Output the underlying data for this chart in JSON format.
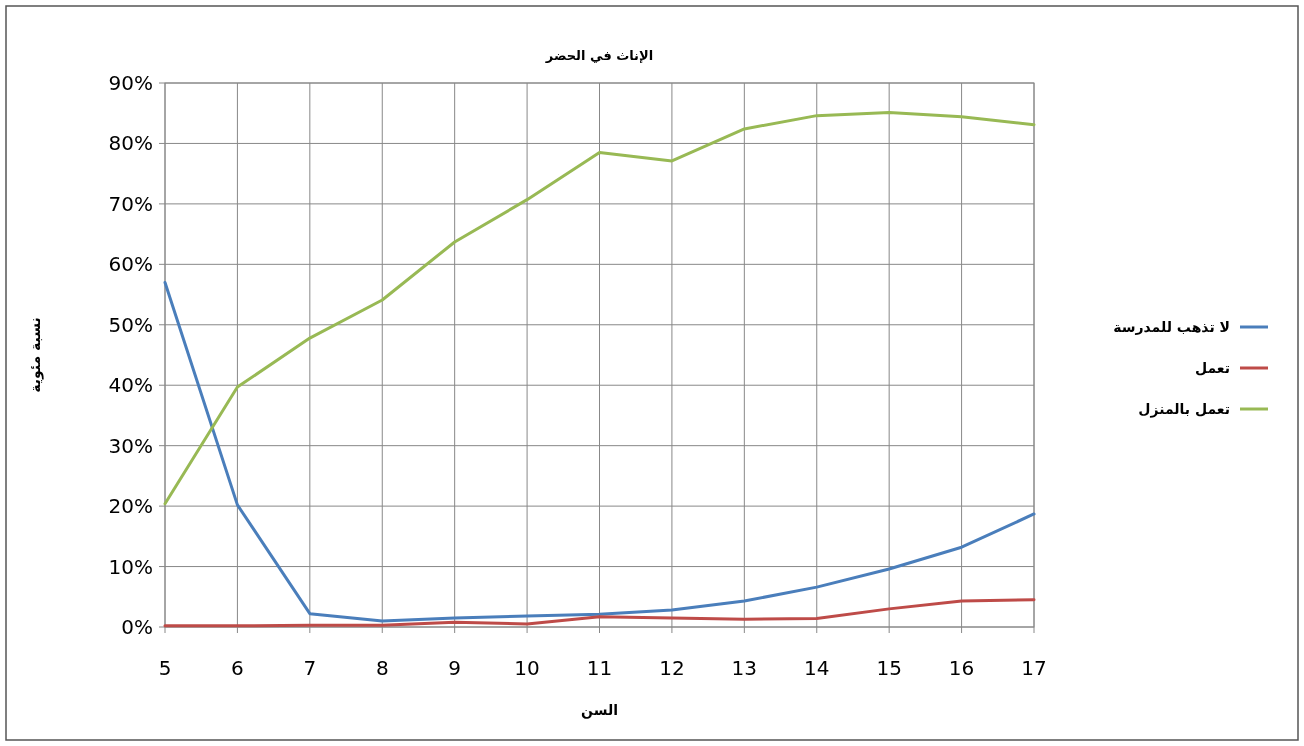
{
  "chart_data": {
    "type": "line",
    "title": "الإناث في الحضر",
    "xlabel": "السن",
    "ylabel": "نسبة مئوية",
    "x": [
      5,
      6,
      7,
      8,
      9,
      10,
      11,
      12,
      13,
      14,
      15,
      16,
      17
    ],
    "series": [
      {
        "name": "لا تذهب للمدرسة",
        "color": "#4a7ebb",
        "values": [
          57,
          20.2,
          2.2,
          1,
          1.5,
          1.8,
          2.1,
          2.8,
          4.3,
          6.6,
          9.6,
          13.2,
          18.7
        ]
      },
      {
        "name": "تعمل",
        "color": "#be4b48",
        "values": [
          0.2,
          0.2,
          0.3,
          0.3,
          0.8,
          0.5,
          1.7,
          1.5,
          1.3,
          1.4,
          3,
          4.3,
          4.5
        ]
      },
      {
        "name": "تعمل بالمنزل",
        "color": "#98b954",
        "values": [
          20.4,
          39.7,
          47.8,
          54.1,
          63.7,
          70.7,
          78.5,
          77.1,
          82.4,
          84.6,
          85.1,
          84.4,
          83.1
        ]
      }
    ],
    "xlim": [
      5,
      17
    ],
    "xticks": [
      5,
      6,
      7,
      8,
      9,
      10,
      11,
      12,
      13,
      14,
      15,
      16,
      17
    ],
    "ylim": [
      0,
      90
    ],
    "yticks": [
      {
        "value": 0,
        "label": "0%"
      },
      {
        "value": 10,
        "label": "10%"
      },
      {
        "value": 20,
        "label": "20%"
      },
      {
        "value": 30,
        "label": "30%"
      },
      {
        "value": 40,
        "label": "40%"
      },
      {
        "value": 50,
        "label": "50%"
      },
      {
        "value": 60,
        "label": "60%"
      },
      {
        "value": 70,
        "label": "70%"
      },
      {
        "value": 80,
        "label": "80%"
      },
      {
        "value": 90,
        "label": "90%"
      }
    ],
    "grid": true,
    "legend": "right",
    "marker": "none",
    "line_style": "solid"
  }
}
